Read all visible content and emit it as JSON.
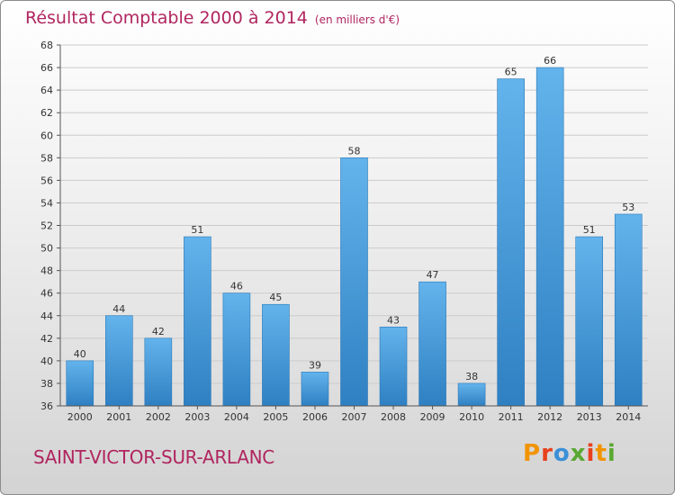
{
  "title": "Résultat Comptable 2000 à 2014",
  "unit_note": "(en milliers d'€)",
  "commune": "SAINT-VICTOR-SUR-ARLANC",
  "brand": {
    "letters": [
      "P",
      "r",
      "o",
      "x",
      "i",
      "t",
      "i"
    ],
    "colors": [
      "#f29400",
      "#e8401e",
      "#3a8fd8",
      "#5aa832",
      "#e8401e",
      "#f29400",
      "#5aa832"
    ]
  },
  "colors": {
    "bar_light": "#63b3ec",
    "bar_dark": "#2f80c2",
    "title": "#b0255f",
    "grid": "#cccccc"
  },
  "chart_data": {
    "type": "bar",
    "title": "Résultat Comptable 2000 à 2014",
    "xlabel": "",
    "ylabel": "(en milliers d'€)",
    "categories": [
      "2000",
      "2001",
      "2002",
      "2003",
      "2004",
      "2005",
      "2006",
      "2007",
      "2008",
      "2009",
      "2010",
      "2011",
      "2012",
      "2013",
      "2014"
    ],
    "values": [
      40,
      44,
      42,
      51,
      46,
      45,
      39,
      58,
      43,
      47,
      38,
      65,
      66,
      51,
      53
    ],
    "ylim": [
      36,
      68
    ],
    "yticks": [
      36,
      38,
      40,
      42,
      44,
      46,
      48,
      50,
      52,
      54,
      56,
      58,
      60,
      62,
      64,
      66,
      68
    ],
    "grid": true,
    "legend": "none"
  }
}
